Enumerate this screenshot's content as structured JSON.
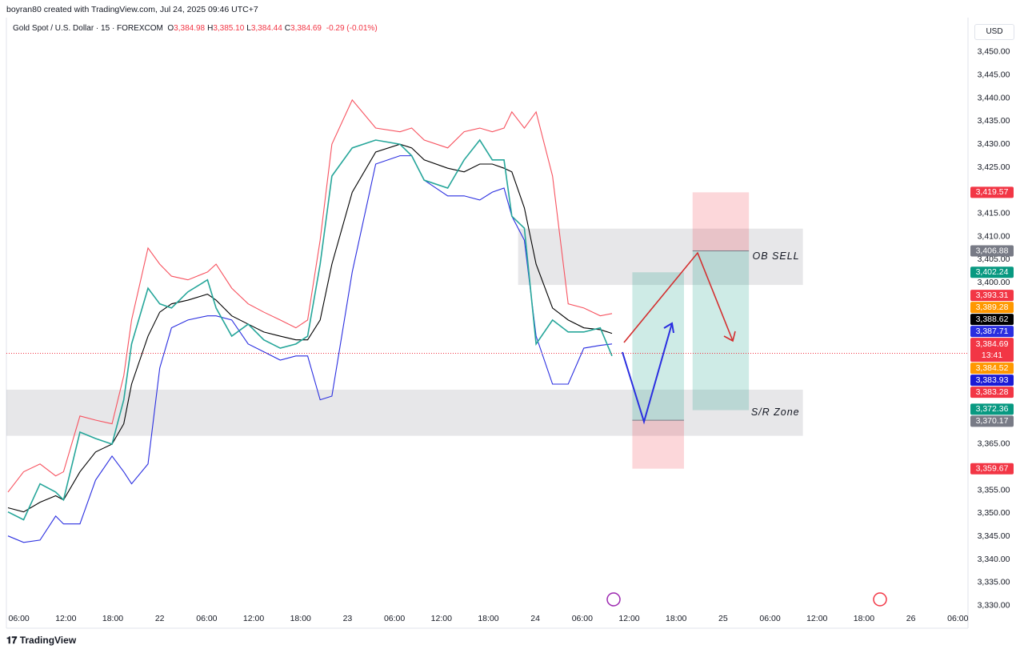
{
  "header": "boyran80 created with TradingView.com, Jul 24, 2025 09:46 UTC+7",
  "footer": "TradingView",
  "currency": "USD",
  "legend": {
    "symbol": "Gold Spot / U.S. Dollar · 15 · FOREXCOM",
    "ohlc": [
      {
        "key": "O",
        "value": "3,384.98"
      },
      {
        "key": "H",
        "value": "3,385.10"
      },
      {
        "key": "L",
        "value": "3,384.44"
      },
      {
        "key": "C",
        "value": "3,384.69"
      }
    ],
    "change": "-0.29 (-0.01%)"
  },
  "chart_data": {
    "type": "line",
    "x": [
      4.6,
      6.6,
      8.7,
      10.7,
      11.7,
      13.8,
      15.8,
      17.9,
      19.4,
      20.4,
      22.5,
      24,
      25.5,
      27.6,
      30.1,
      31.2,
      33.2,
      35.3,
      37.3,
      39.4,
      41.4,
      42.9,
      44.5,
      46,
      48.6,
      51.6,
      54.7,
      56.2,
      57.8,
      60.8,
      62.9,
      64.9,
      66.5,
      68,
      69,
      70.6,
      72.1,
      74.2,
      76.2,
      78.2,
      80.3,
      81.8
    ],
    "series": [
      {
        "color": "#f7525f",
        "values": [
          3354.6,
          3359,
          3360.7,
          3358.1,
          3359,
          3371.1,
          3370.2,
          3369.4,
          3379.8,
          3391.9,
          3407.5,
          3404,
          3401.4,
          3400.6,
          3402.3,
          3404,
          3398.8,
          3395.4,
          3393.6,
          3391.9,
          3390.2,
          3391.9,
          3409.2,
          3430,
          3439.6,
          3433.5,
          3432.7,
          3433.5,
          3430.9,
          3429.2,
          3432.7,
          3433.5,
          3432.7,
          3433.5,
          3437,
          3433.5,
          3437,
          3423.1,
          3395.4,
          3394.5,
          3392.8,
          3393.3
        ]
      },
      {
        "color": "#2a2ee0",
        "values": [
          3345.1,
          3343.7,
          3344.2,
          3349.4,
          3347.7,
          3347.7,
          3357.2,
          3362.4,
          3359,
          3356.4,
          3360.7,
          3381.5,
          3390.2,
          3391.9,
          3392.8,
          3392.8,
          3391.9,
          3386.7,
          3385,
          3383.2,
          3384.1,
          3384.1,
          3374.6,
          3375.4,
          3402.3,
          3425.7,
          3427.5,
          3427.5,
          3422.2,
          3418.8,
          3418.8,
          3417.9,
          3419.6,
          3420.5,
          3414.4,
          3409.2,
          3388.4,
          3378,
          3378,
          3385.8,
          3386.4,
          3386.7
        ]
      },
      {
        "color": "#000000",
        "values": [
          3351.2,
          3350.3,
          3352.4,
          3353.8,
          3352.9,
          3359,
          3363.3,
          3365,
          3369.4,
          3378,
          3388.4,
          3393.6,
          3395.4,
          3396.2,
          3397.5,
          3396.2,
          3392.8,
          3391,
          3389.3,
          3388.4,
          3387.6,
          3387.6,
          3391.9,
          3404,
          3419.6,
          3428.3,
          3430,
          3429.2,
          3426.6,
          3424.8,
          3424,
          3425.7,
          3425.7,
          3424.8,
          3424,
          3416.2,
          3404,
          3394.5,
          3391.9,
          3390.2,
          3389.8,
          3389
        ]
      },
      {
        "color": "#26a69a",
        "values": [
          3350.3,
          3348.6,
          3356.4,
          3354.6,
          3352.9,
          3367.6,
          3366.2,
          3365,
          3374.6,
          3386.7,
          3398.8,
          3395.4,
          3394.5,
          3398,
          3400.6,
          3394.5,
          3388.4,
          3391,
          3387.6,
          3385.8,
          3386.7,
          3388.4,
          3404,
          3423.1,
          3429.2,
          3430.9,
          3430,
          3427.5,
          3422.2,
          3420.5,
          3426.6,
          3430.9,
          3426.6,
          3426.6,
          3414.4,
          3411.8,
          3386.7,
          3391.9,
          3389.3,
          3389.3,
          3390.2,
          3384.1
        ]
      }
    ],
    "xlim": [
      4.4,
      127.3
    ],
    "ylim": [
      3325.1,
      3456.4
    ],
    "xticks": [
      {
        "value": 6,
        "label": "06:00"
      },
      {
        "value": 12,
        "label": "12:00"
      },
      {
        "value": 18,
        "label": "18:00"
      },
      {
        "value": 24,
        "label": "22"
      },
      {
        "value": 30,
        "label": "06:00"
      },
      {
        "value": 36,
        "label": "12:00"
      },
      {
        "value": 42,
        "label": "18:00"
      },
      {
        "value": 48,
        "label": "23"
      },
      {
        "value": 54,
        "label": "06:00"
      },
      {
        "value": 60,
        "label": "12:00"
      },
      {
        "value": 66,
        "label": "18:00"
      },
      {
        "value": 72,
        "label": "24"
      },
      {
        "value": 78,
        "label": "06:00"
      },
      {
        "value": 84,
        "label": "12:00"
      },
      {
        "value": 90,
        "label": "18:00"
      },
      {
        "value": 96,
        "label": "25"
      },
      {
        "value": 102,
        "label": "06:00"
      },
      {
        "value": 108,
        "label": "12:00"
      },
      {
        "value": 114,
        "label": "18:00"
      },
      {
        "value": 120,
        "label": "26"
      },
      {
        "value": 126,
        "label": "06:00"
      }
    ],
    "yticks": [
      {
        "value": 3450,
        "label": "3,450.00"
      },
      {
        "value": 3445,
        "label": "3,445.00"
      },
      {
        "value": 3440,
        "label": "3,440.00"
      },
      {
        "value": 3435,
        "label": "3,435.00"
      },
      {
        "value": 3430,
        "label": "3,430.00"
      },
      {
        "value": 3425,
        "label": "3,425.00"
      },
      {
        "value": 3415,
        "label": "3,415.00"
      },
      {
        "value": 3410,
        "label": "3,410.00"
      },
      {
        "value": 3405,
        "label": "3,405.00"
      },
      {
        "value": 3400,
        "label": "3,400.00"
      },
      {
        "value": 3365,
        "label": "3,365.00"
      },
      {
        "value": 3355,
        "label": "3,355.00"
      },
      {
        "value": 3350,
        "label": "3,350.00"
      },
      {
        "value": 3345,
        "label": "3,345.00"
      },
      {
        "value": 3340,
        "label": "3,340.00"
      },
      {
        "value": 3335,
        "label": "3,335.00"
      },
      {
        "value": 3330,
        "label": "3,330.00"
      }
    ],
    "grid": false,
    "zones": [
      {
        "label": "OB SELL",
        "ylim": [
          3399.5,
          3411.7
        ],
        "xlim": [
          69.8,
          106.2
        ]
      },
      {
        "label": "S/R Zone",
        "ylim": [
          3366.8,
          3376.8
        ],
        "xlim": [
          4.4,
          106.2
        ]
      }
    ],
    "positions": [
      {
        "entry": 3370.17,
        "target": 3402.24,
        "stop": 3359.67,
        "xlim": [
          84.4,
          91
        ]
      },
      {
        "entry": 3406.88,
        "target": 3372.36,
        "stop": 3419.57,
        "xlim": [
          92.1,
          99.3
        ]
      }
    ],
    "last": {
      "value": 3384.69,
      "label": "3,384.69",
      "countdown": "13:41",
      "color": "#f23645"
    },
    "price_tags": [
      {
        "value": 3419.57,
        "label": "3,419.57",
        "color": "#f23645"
      },
      {
        "value": 3406.88,
        "label": "3,406.88",
        "color": "#787b86"
      },
      {
        "value": 3402.24,
        "label": "3,402.24",
        "color": "#089981"
      },
      {
        "value": 3393.31,
        "label": "3,393.31",
        "color": "#f23645"
      },
      {
        "value": 3389.28,
        "label": "3,389.28",
        "color": "#ff9800"
      },
      {
        "value": 3388.62,
        "label": "3,388.62",
        "color": "#000000"
      },
      {
        "value": 3387.71,
        "label": "3,387.71",
        "color": "#2a2ee0"
      },
      {
        "value": 3384.52,
        "label": "3,384.52",
        "color": "#ff9800"
      },
      {
        "value": 3383.93,
        "label": "3,383.93",
        "color": "#1b1bd6"
      },
      {
        "value": 3383.28,
        "label": "3,383.28",
        "color": "#f23645"
      },
      {
        "value": 3372.36,
        "label": "3,372.36",
        "color": "#089981"
      },
      {
        "value": 3370.17,
        "label": "3,370.17",
        "color": "#787b86"
      },
      {
        "value": 3359.67,
        "label": "3,359.67",
        "color": "#f23645"
      }
    ]
  }
}
